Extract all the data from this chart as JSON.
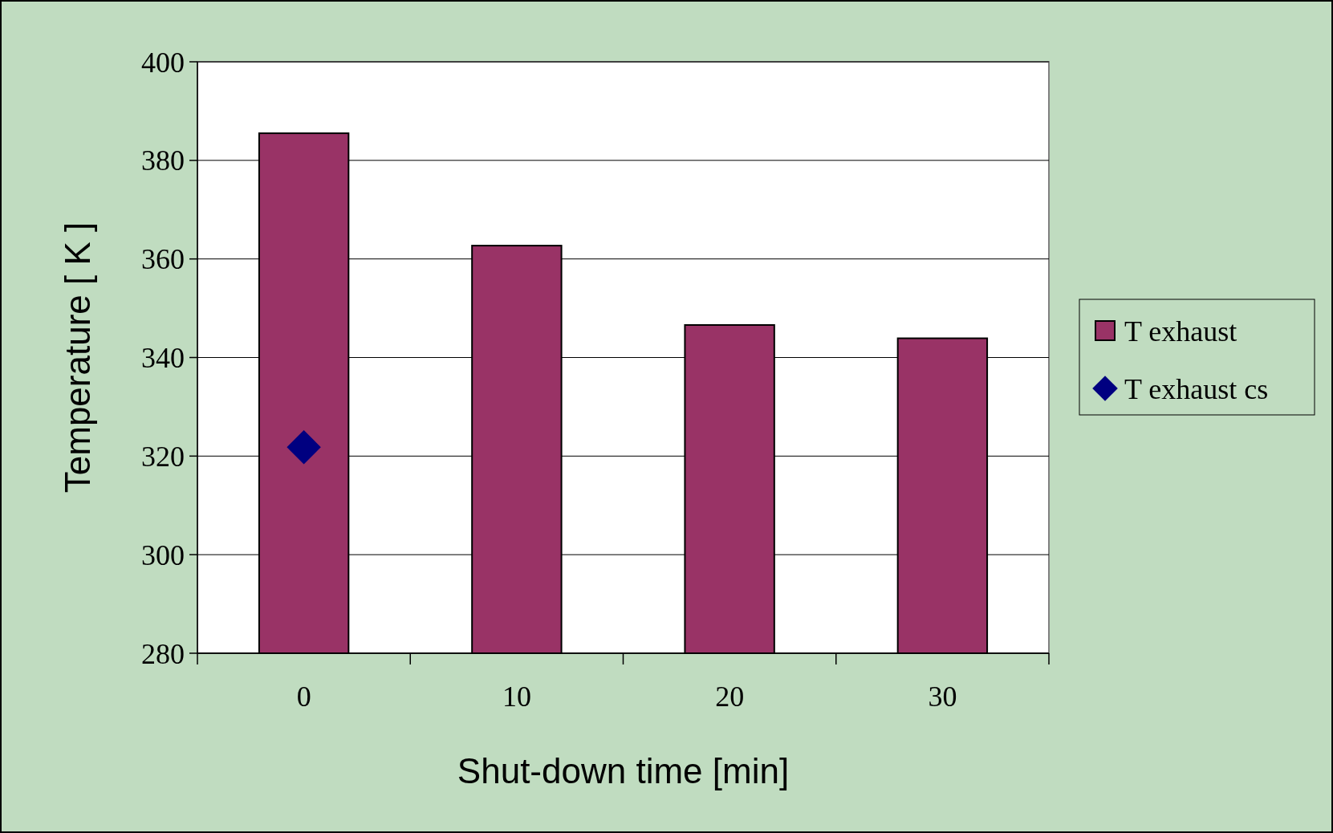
{
  "chart_data": {
    "type": "bar",
    "xlabel": "Shut-down time [min]",
    "ylabel": "Temperature [ K ]",
    "categories": [
      "0",
      "10",
      "20",
      "30"
    ],
    "series": [
      {
        "name": "T exhaust",
        "color": "#993366",
        "values": [
          385.5,
          362.7,
          346.6,
          343.9
        ]
      },
      {
        "name": "T exhaust cs",
        "type": "scatter",
        "color": "#000080",
        "marker": "diamond",
        "x": [
          "0"
        ],
        "values": [
          321.8
        ]
      }
    ],
    "ylim": [
      280,
      400
    ],
    "yticks": [
      280,
      300,
      320,
      340,
      360,
      380,
      400
    ],
    "grid": "y",
    "legend": "right"
  }
}
